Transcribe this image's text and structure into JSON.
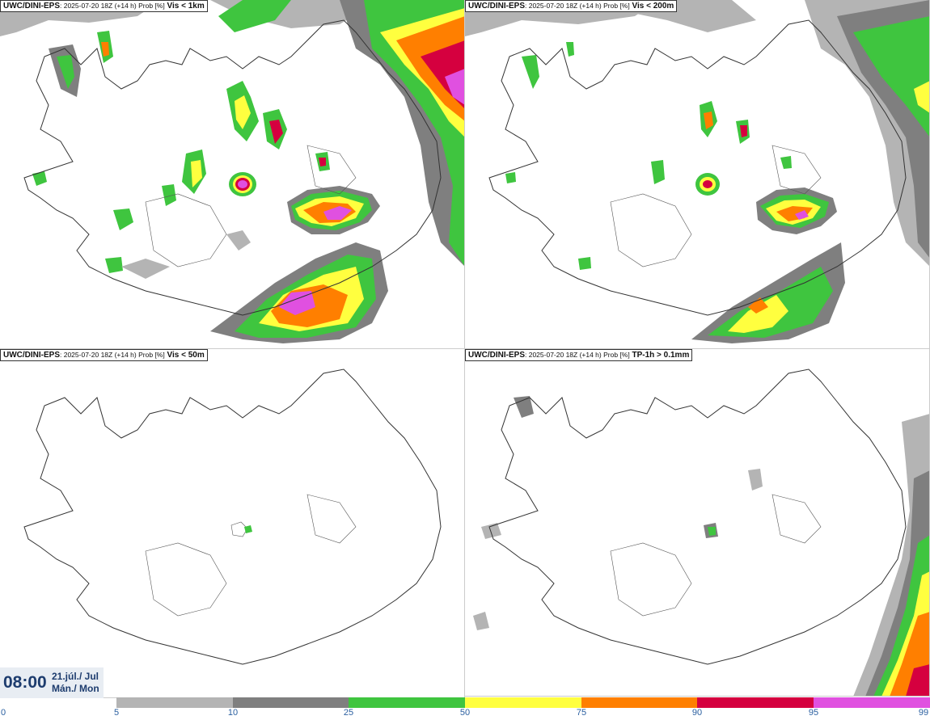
{
  "panels": [
    {
      "model": "UWC/DINI-EPS",
      "info": ": 2025-07-20 18Z (+14 h) Prob [%]",
      "variable": "Vis < 1km"
    },
    {
      "model": "UWC/DINI-EPS",
      "info": ": 2025-07-20 18Z (+14 h) Prob [%]",
      "variable": "Vis < 200m"
    },
    {
      "model": "UWC/DINI-EPS",
      "info": ": 2025-07-20 18Z (+14 h) Prob [%]",
      "variable": "Vis < 50m"
    },
    {
      "model": "UWC/DINI-EPS",
      "info": ": 2025-07-20 18Z (+14 h) Prob [%]",
      "variable": "TP-1h > 0.1mm"
    }
  ],
  "valid_time": {
    "time": "08:00",
    "date_line1": "21.júl./ Jul",
    "date_line2": "Mán./ Mon"
  },
  "legend": {
    "ticks": [
      "0",
      "5",
      "10",
      "25",
      "50",
      "75",
      "90",
      "95",
      "99"
    ],
    "colors": [
      "#ffffff",
      "#b4b4b4",
      "#7f7f7f",
      "#3fc53f",
      "#ffff3f",
      "#ff7f00",
      "#d5003f",
      "#e050e0"
    ]
  }
}
